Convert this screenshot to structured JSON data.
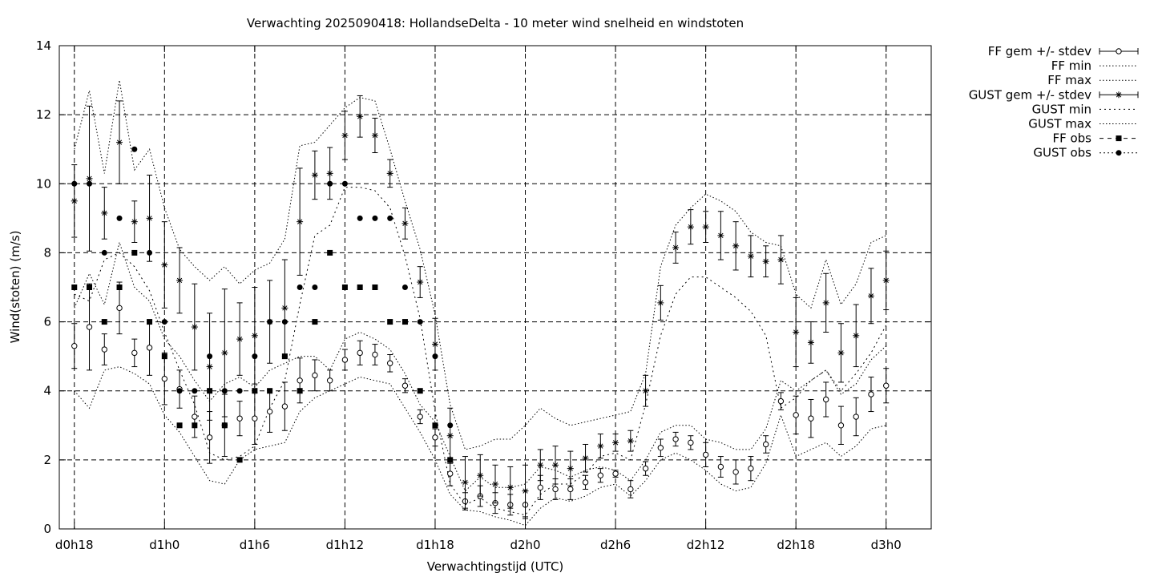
{
  "chart_data": {
    "type": "line",
    "title": "Verwachting 2025090418: HollandseDelta - 10 meter wind snelheid en windstoten",
    "xlabel": "Verwachtingstijd (UTC)",
    "ylabel": "Wind(stoten) (m/s)",
    "ylim": [
      0,
      14
    ],
    "yticks": [
      0,
      2,
      4,
      6,
      8,
      10,
      12,
      14
    ],
    "xlim": [
      17,
      75
    ],
    "xticks": [
      {
        "value": 18,
        "label": "d0h18"
      },
      {
        "value": 24,
        "label": "d1h0"
      },
      {
        "value": 30,
        "label": "d1h6"
      },
      {
        "value": 36,
        "label": "d1h12"
      },
      {
        "value": 42,
        "label": "d1h18"
      },
      {
        "value": 48,
        "label": "d2h0"
      },
      {
        "value": 54,
        "label": "d2h6"
      },
      {
        "value": 60,
        "label": "d2h12"
      },
      {
        "value": 66,
        "label": "d2h18"
      },
      {
        "value": 72,
        "label": "d3h0"
      }
    ],
    "grid": true,
    "legend_position": "outside-right",
    "x": [
      18,
      19,
      20,
      21,
      22,
      23,
      24,
      25,
      26,
      27,
      28,
      29,
      30,
      31,
      32,
      33,
      34,
      35,
      36,
      37,
      38,
      39,
      40,
      41,
      42,
      43,
      44,
      45,
      46,
      47,
      48,
      49,
      50,
      51,
      52,
      53,
      54,
      55,
      56,
      57,
      58,
      59,
      60,
      61,
      62,
      63,
      64,
      65,
      66,
      67,
      68,
      69,
      70,
      71,
      72
    ],
    "series": [
      {
        "name": "FF gem +/- stdev",
        "style": "errorbar-open-circle",
        "mean": [
          5.3,
          5.85,
          5.2,
          6.4,
          5.1,
          5.25,
          4.35,
          4.05,
          3.25,
          2.65,
          3.0,
          3.2,
          3.2,
          3.4,
          3.55,
          4.3,
          4.45,
          4.3,
          4.9,
          5.1,
          5.05,
          4.8,
          4.15,
          3.25,
          2.65,
          1.6,
          0.8,
          0.95,
          0.75,
          0.7,
          0.7,
          1.2,
          1.15,
          1.15,
          1.35,
          1.55,
          1.6,
          1.15,
          1.75,
          2.35,
          2.6,
          2.5,
          2.15,
          1.8,
          1.65,
          1.75,
          2.45,
          3.7,
          3.3,
          3.2,
          3.75,
          3.0,
          3.25,
          3.9,
          4.15
        ],
        "stdev": [
          0.65,
          1.25,
          0.45,
          0.75,
          0.4,
          0.8,
          0.75,
          0.55,
          0.6,
          0.75,
          0.9,
          0.5,
          0.75,
          0.6,
          0.7,
          0.65,
          0.45,
          0.3,
          0.3,
          0.35,
          0.3,
          0.25,
          0.2,
          0.2,
          0.25,
          0.35,
          0.25,
          0.3,
          0.3,
          0.3,
          0.4,
          0.35,
          0.3,
          0.3,
          0.2,
          0.2,
          0.1,
          0.25,
          0.2,
          0.25,
          0.2,
          0.2,
          0.35,
          0.3,
          0.35,
          0.35,
          0.25,
          0.25,
          0.55,
          0.55,
          0.5,
          0.55,
          0.55,
          0.5,
          0.5
        ]
      },
      {
        "name": "FF min",
        "style": "dotted",
        "values": [
          4.0,
          3.5,
          4.6,
          4.7,
          4.5,
          4.2,
          3.3,
          2.8,
          2.1,
          1.4,
          1.3,
          2.0,
          2.3,
          2.4,
          2.5,
          3.4,
          3.8,
          4.0,
          4.2,
          4.4,
          4.3,
          4.2,
          3.5,
          2.8,
          2.0,
          1.0,
          0.55,
          0.5,
          0.35,
          0.25,
          0.1,
          0.6,
          0.9,
          0.8,
          0.95,
          1.2,
          1.3,
          0.95,
          1.4,
          2.0,
          2.2,
          2.0,
          1.7,
          1.3,
          1.1,
          1.2,
          1.9,
          3.3,
          2.1,
          2.3,
          2.5,
          2.1,
          2.4,
          2.9,
          3.0
        ]
      },
      {
        "name": "FF max",
        "style": "dotted",
        "values": [
          6.4,
          7.4,
          6.5,
          8.3,
          7.0,
          6.6,
          5.5,
          5.0,
          4.3,
          3.7,
          4.2,
          4.4,
          4.1,
          4.6,
          4.8,
          5.0,
          5.0,
          4.6,
          5.5,
          5.7,
          5.5,
          5.2,
          4.5,
          3.6,
          3.1,
          2.1,
          1.1,
          1.5,
          1.2,
          1.2,
          1.3,
          1.8,
          1.7,
          1.5,
          1.7,
          1.8,
          1.7,
          1.4,
          2.0,
          2.8,
          3.0,
          3.0,
          2.6,
          2.5,
          2.3,
          2.3,
          2.9,
          4.3,
          4.0,
          4.3,
          4.6,
          3.9,
          4.2,
          4.9,
          5.3
        ]
      },
      {
        "name": "GUST gem +/- stdev",
        "style": "errorbar-star",
        "mean": [
          9.5,
          10.15,
          9.15,
          11.2,
          8.9,
          9.0,
          7.65,
          7.2,
          5.85,
          4.7,
          5.1,
          5.5,
          5.6,
          6.0,
          6.4,
          8.9,
          10.25,
          10.3,
          11.4,
          11.95,
          11.4,
          10.3,
          8.85,
          7.15,
          5.35,
          2.7,
          1.35,
          1.55,
          1.3,
          1.2,
          1.1,
          1.85,
          1.85,
          1.75,
          2.05,
          2.4,
          2.5,
          2.55,
          4.0,
          6.55,
          8.15,
          8.75,
          8.75,
          8.5,
          8.2,
          7.9,
          7.75,
          7.8,
          5.7,
          5.4,
          6.55,
          5.1,
          5.6,
          6.75,
          7.2
        ],
        "stdev": [
          1.05,
          2.1,
          0.75,
          1.2,
          0.6,
          1.25,
          1.25,
          0.95,
          1.25,
          1.55,
          1.85,
          1.05,
          1.4,
          1.2,
          1.4,
          1.55,
          0.7,
          0.75,
          0.7,
          0.6,
          0.5,
          0.4,
          0.45,
          0.45,
          0.75,
          0.8,
          0.75,
          0.6,
          0.55,
          0.6,
          0.75,
          0.45,
          0.55,
          0.5,
          0.4,
          0.35,
          0.25,
          0.3,
          0.45,
          0.5,
          0.45,
          0.5,
          0.45,
          0.7,
          0.7,
          0.6,
          0.45,
          0.7,
          1.0,
          0.6,
          0.85,
          0.85,
          0.9,
          0.8,
          0.85
        ]
      },
      {
        "name": "GUST min",
        "style": "dotted",
        "values": [
          6.8,
          6.6,
          7.8,
          8.0,
          7.6,
          6.9,
          5.7,
          4.6,
          3.6,
          2.2,
          2.0,
          2.1,
          2.4,
          3.5,
          4.3,
          6.5,
          8.5,
          8.8,
          9.9,
          9.9,
          9.8,
          9.3,
          7.9,
          6.1,
          3.4,
          1.3,
          0.7,
          0.9,
          0.6,
          0.5,
          0.4,
          1.0,
          1.3,
          1.3,
          1.6,
          2.1,
          2.2,
          2.0,
          3.6,
          5.6,
          6.8,
          7.3,
          7.3,
          7.0,
          6.7,
          6.3,
          5.6,
          3.5,
          3.8,
          4.3,
          4.6,
          4.0,
          4.5,
          5.1,
          5.9
        ]
      },
      {
        "name": "GUST max",
        "style": "dotted",
        "values": [
          11.0,
          12.7,
          10.3,
          13.0,
          10.4,
          11.0,
          9.3,
          8.1,
          7.6,
          7.2,
          7.6,
          7.1,
          7.5,
          7.7,
          8.4,
          11.1,
          11.2,
          11.7,
          12.2,
          12.5,
          12.4,
          11.0,
          9.5,
          8.1,
          6.2,
          3.6,
          2.3,
          2.4,
          2.6,
          2.6,
          3.0,
          3.5,
          3.2,
          3.0,
          3.1,
          3.2,
          3.3,
          3.4,
          4.5,
          7.6,
          8.8,
          9.3,
          9.7,
          9.5,
          9.2,
          8.6,
          8.3,
          8.2,
          6.8,
          6.4,
          7.8,
          6.5,
          7.1,
          8.3,
          8.5
        ]
      },
      {
        "name": "FF obs",
        "style": "points-square",
        "x": [
          18,
          19,
          20,
          21,
          22,
          23,
          24,
          25,
          26,
          27,
          28,
          29,
          30,
          31,
          32,
          33,
          34,
          35,
          36,
          37,
          38,
          39,
          40,
          41,
          42,
          43
        ],
        "values": [
          7,
          7,
          6,
          7,
          8,
          6,
          5,
          3,
          3,
          4,
          3,
          2,
          4,
          4,
          5,
          4,
          6,
          8,
          7,
          7,
          7,
          6,
          6,
          4,
          3,
          2
        ]
      },
      {
        "name": "GUST obs",
        "style": "points-circle",
        "x": [
          18,
          19,
          20,
          21,
          22,
          23,
          24,
          25,
          26,
          27,
          28,
          29,
          30,
          31,
          32,
          33,
          34,
          35,
          36,
          37,
          38,
          39,
          40,
          41,
          42,
          43
        ],
        "values": [
          10,
          10,
          8,
          9,
          11,
          8,
          6,
          4,
          4,
          5,
          4,
          4,
          5,
          6,
          6,
          7,
          7,
          10,
          10,
          9,
          9,
          9,
          7,
          6,
          5,
          3
        ]
      }
    ]
  }
}
